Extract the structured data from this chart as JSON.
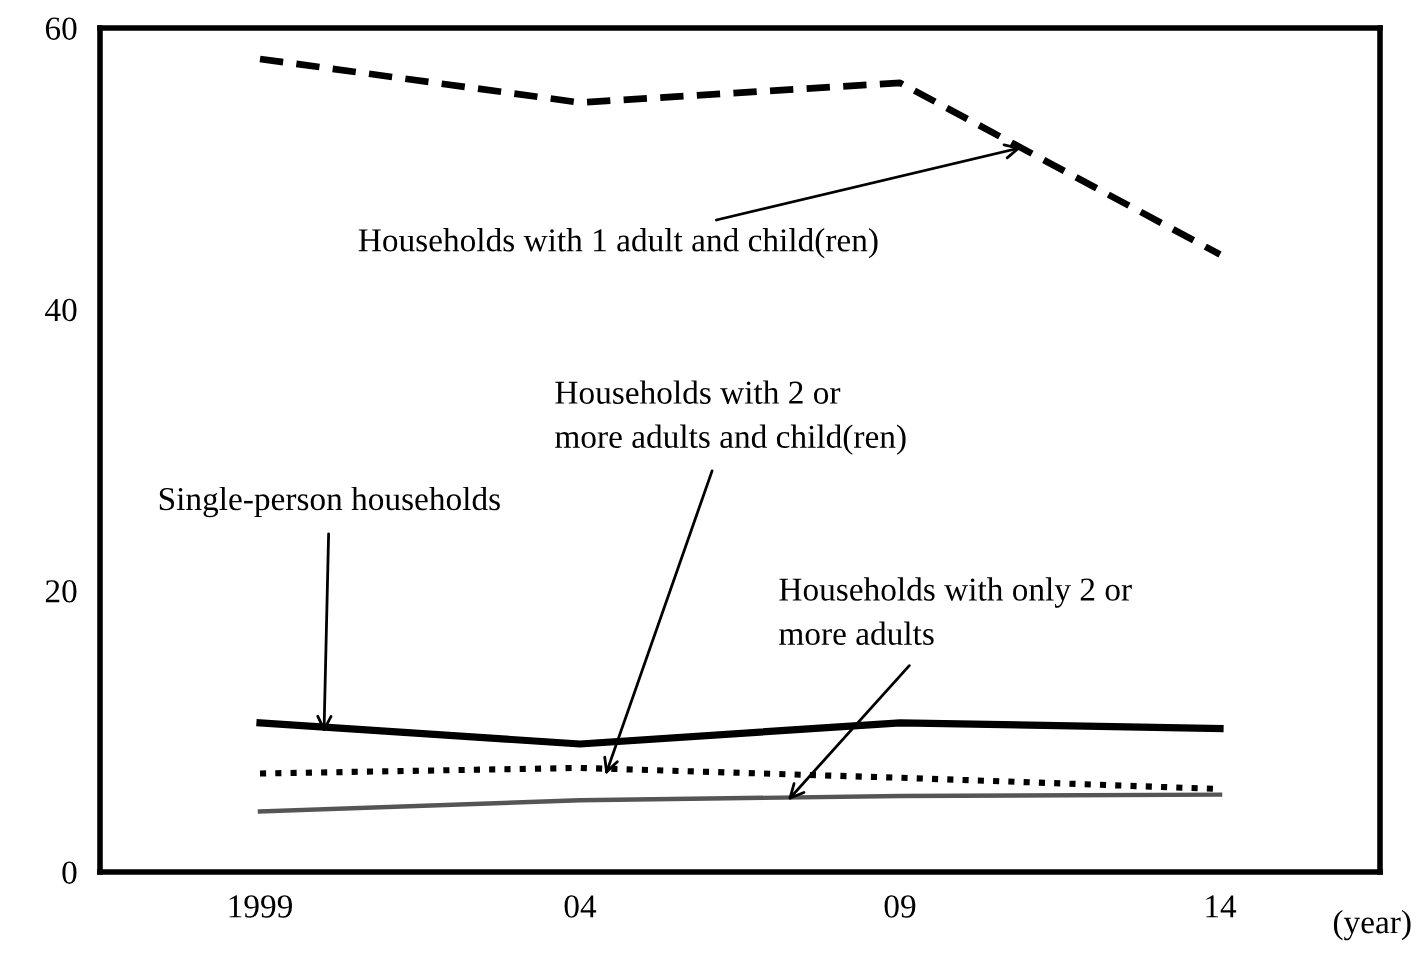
{
  "chart_data": {
    "type": "line",
    "xlabel": "(year)",
    "x": [
      1999,
      2004,
      2009,
      2014
    ],
    "xlim": [
      1996.5,
      2016.5
    ],
    "xticks": [
      {
        "value": 1999,
        "label": "1999"
      },
      {
        "value": 2004,
        "label": "04"
      },
      {
        "value": 2009,
        "label": "09"
      },
      {
        "value": 2014,
        "label": "14"
      }
    ],
    "ylim": [
      0,
      60
    ],
    "yticks": [
      0,
      20,
      40,
      60
    ],
    "grid": false,
    "legend": false,
    "marker": "none",
    "series": [
      {
        "color": "#000000",
        "line_style": "dashed",
        "values": [
          57.8,
          54.7,
          56.1,
          43.9
        ]
      },
      {
        "color": "#000000",
        "line_style": "solid",
        "values": [
          10.6,
          9.1,
          10.6,
          10.2
        ]
      },
      {
        "color": "#000000",
        "line_style": "dotted",
        "values": [
          7.0,
          7.4,
          6.7,
          5.9
        ]
      },
      {
        "color": "#555555",
        "line_style": "solid",
        "values": [
          4.3,
          5.1,
          5.4,
          5.5
        ]
      }
    ],
    "annotations": [
      {
        "text": "Households with 1 adult and child(ren)",
        "x": 2010.9,
        "y": 51.5
      },
      {
        "text": "Households with 2 or\nmore adults and child(ren)",
        "x": 2004.4,
        "y": 6.9
      },
      {
        "text": "Single-person households",
        "x": 2000.0,
        "y": 9.9
      },
      {
        "text": "Households with only 2 or\nmore adults",
        "x": 2007.25,
        "y": 5.1
      }
    ]
  }
}
